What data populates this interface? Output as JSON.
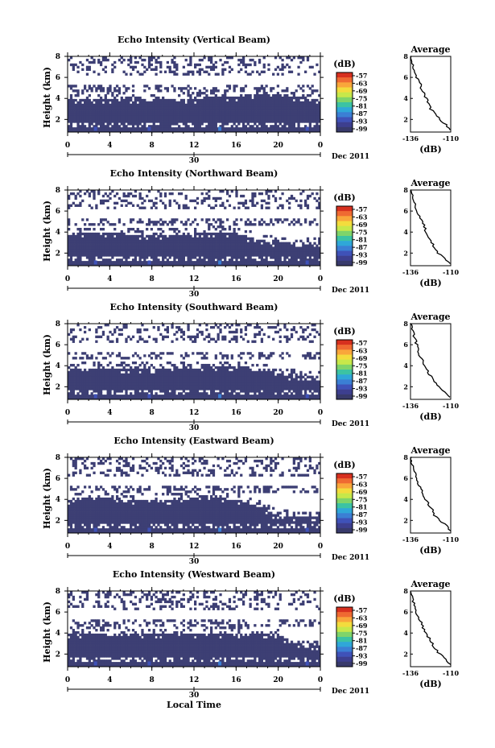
{
  "figure": {
    "xlabel": "Local Time",
    "date_label": "Dec 2011",
    "date_tick": "30",
    "colorbar_unit": "(dB)",
    "colorbar_ticks": [
      "-57",
      "-63",
      "-69",
      "-75",
      "-81",
      "-87",
      "-93",
      "-99"
    ],
    "colorbar_colors": [
      "#d7301f",
      "#ef6a32",
      "#f9a63b",
      "#f3dc3d",
      "#c7e84a",
      "#7fd46a",
      "#3cc3a3",
      "#2fa7d8",
      "#3b7fd4",
      "#3f52b8",
      "#3d3f8f",
      "#383a6b"
    ],
    "avg_title": "Average",
    "avg_xlabel": "(dB)",
    "avg_xticks": [
      "-136",
      "-110"
    ],
    "avg_yticks": [
      "2",
      "4",
      "6",
      "8"
    ],
    "height_ticks": [
      "2",
      "4",
      "6",
      "8"
    ],
    "time_ticks": [
      "0",
      "4",
      "8",
      "12",
      "16",
      "20",
      "0"
    ],
    "ylabel": "Height (km)",
    "fill_color": "#3d3f74"
  },
  "chart_data": [
    {
      "type": "heatmap",
      "title": "Echo Intensity (Vertical Beam)",
      "x_range_hours": [
        0,
        24
      ],
      "y_range_km": [
        0.8,
        8
      ],
      "z_range_db": [
        -99,
        -57
      ],
      "dense_top_km": [
        3.9,
        4.0,
        4.0,
        3.9,
        3.8,
        3.9,
        4.0,
        4.1,
        4.2,
        4.3,
        4.3,
        4.2,
        3.8
      ],
      "pattern_seed": 3,
      "average_profile": {
        "height_km": [
          1.0,
          1.5,
          2.0,
          2.5,
          3.0,
          3.5,
          4.0,
          4.5,
          5.0,
          5.5,
          6.0,
          6.5,
          7.0,
          7.5,
          8.0
        ],
        "db": [
          -110,
          -113,
          -117,
          -120,
          -123,
          -124,
          -126,
          -127,
          -129,
          -130,
          -132,
          -133,
          -134,
          -135,
          -136
        ]
      }
    },
    {
      "type": "heatmap",
      "title": "Echo Intensity (Northward Beam)",
      "x_range_hours": [
        0,
        24
      ],
      "y_range_km": [
        0.8,
        8
      ],
      "z_range_db": [
        -99,
        -57
      ],
      "dense_top_km": [
        3.8,
        3.9,
        3.9,
        3.8,
        3.7,
        3.8,
        3.9,
        4.0,
        3.9,
        3.3,
        3.0,
        2.9,
        2.9
      ],
      "pattern_seed": 7,
      "average_profile": {
        "height_km": [
          1.0,
          1.5,
          2.0,
          2.5,
          3.0,
          3.5,
          4.0,
          4.5,
          5.0,
          5.5,
          6.0,
          6.5,
          7.0,
          7.5,
          8.0
        ],
        "db": [
          -110,
          -114,
          -118,
          -121,
          -122,
          -124,
          -126,
          -127,
          -128,
          -130,
          -132,
          -133,
          -134,
          -135,
          -136
        ]
      }
    },
    {
      "type": "heatmap",
      "title": "Echo Intensity (Southward Beam)",
      "x_range_hours": [
        0,
        24
      ],
      "y_range_km": [
        0.8,
        8
      ],
      "z_range_db": [
        -99,
        -57
      ],
      "dense_top_km": [
        3.7,
        3.8,
        3.8,
        3.7,
        3.7,
        3.8,
        3.8,
        3.9,
        3.9,
        3.8,
        3.2,
        3.0,
        2.9
      ],
      "pattern_seed": 11,
      "average_profile": {
        "height_km": [
          1.0,
          1.5,
          2.0,
          2.5,
          3.0,
          3.5,
          4.0,
          4.5,
          5.0,
          5.5,
          6.0,
          6.5,
          7.0,
          7.5,
          8.0
        ],
        "db": [
          -110,
          -114,
          -118,
          -121,
          -123,
          -125,
          -127,
          -128,
          -130,
          -131,
          -132,
          -133,
          -134,
          -135,
          -136
        ]
      }
    },
    {
      "type": "heatmap",
      "title": "Echo Intensity (Eastward Beam)",
      "x_range_hours": [
        0,
        24
      ],
      "y_range_km": [
        0.8,
        8
      ],
      "z_range_db": [
        -99,
        -57
      ],
      "dense_top_km": [
        4.0,
        4.1,
        4.1,
        4.0,
        3.9,
        4.0,
        4.1,
        4.1,
        4.0,
        3.4,
        2.4,
        2.3,
        2.3
      ],
      "pattern_seed": 17,
      "average_profile": {
        "height_km": [
          1.0,
          1.5,
          2.0,
          2.5,
          3.0,
          3.5,
          4.0,
          4.5,
          5.0,
          5.5,
          6.0,
          6.5,
          7.0,
          7.5,
          8.0
        ],
        "db": [
          -110,
          -113,
          -117,
          -121,
          -122,
          -124,
          -126,
          -128,
          -129,
          -131,
          -132,
          -133,
          -134,
          -135,
          -136
        ]
      }
    },
    {
      "type": "heatmap",
      "title": "Echo Intensity (Westward Beam)",
      "x_range_hours": [
        0,
        24
      ],
      "y_range_km": [
        0.8,
        8
      ],
      "z_range_db": [
        -99,
        -57
      ],
      "dense_top_km": [
        3.9,
        4.0,
        4.0,
        3.9,
        3.9,
        3.9,
        4.0,
        4.0,
        4.0,
        3.9,
        3.8,
        2.9,
        2.7
      ],
      "pattern_seed": 23,
      "average_profile": {
        "height_km": [
          1.0,
          1.5,
          2.0,
          2.5,
          3.0,
          3.5,
          4.0,
          4.5,
          5.0,
          5.5,
          6.0,
          6.5,
          7.0,
          7.5,
          8.0
        ],
        "db": [
          -110,
          -113,
          -117,
          -120,
          -122,
          -124,
          -126,
          -128,
          -129,
          -131,
          -132,
          -133,
          -134,
          -135,
          -136
        ]
      }
    }
  ]
}
